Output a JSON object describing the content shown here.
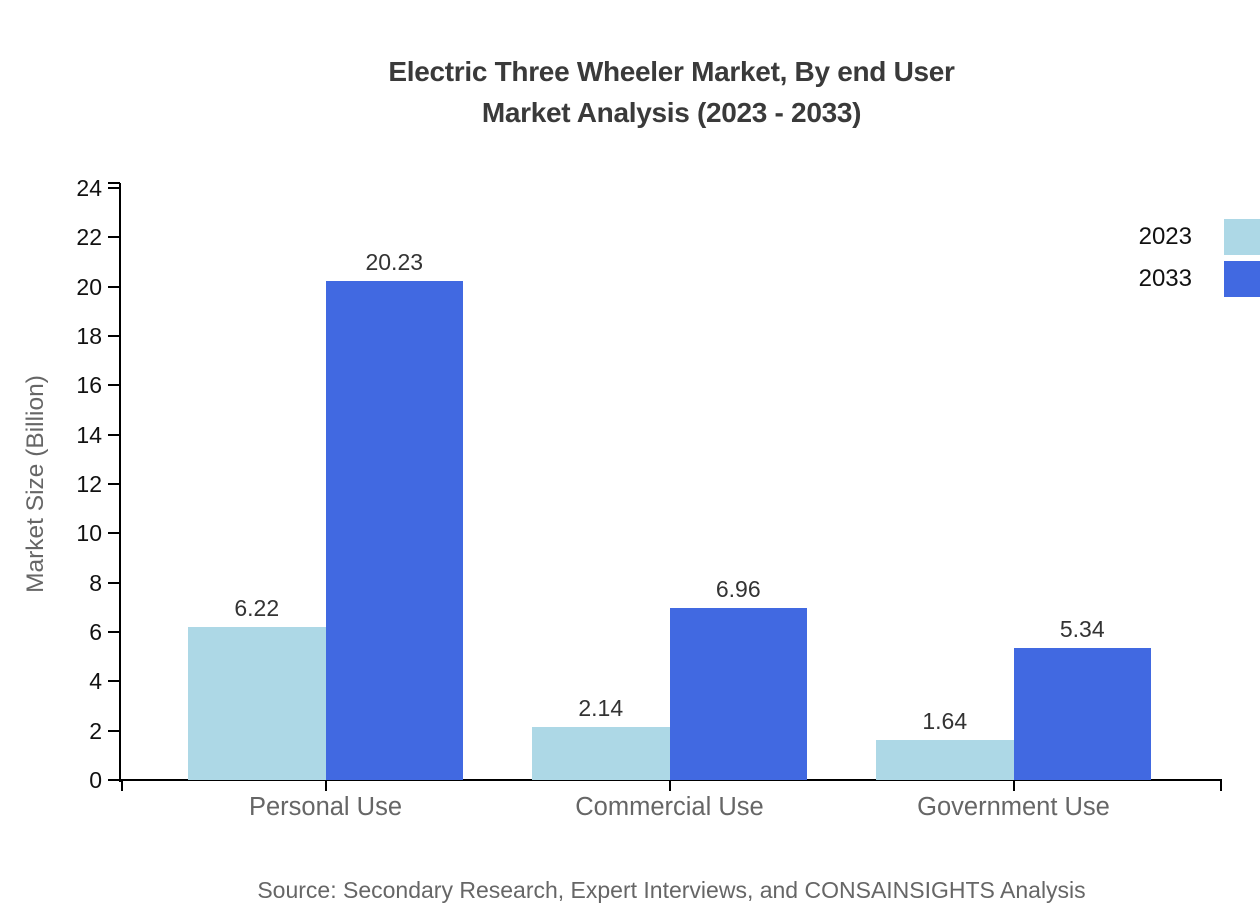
{
  "title": {
    "line1": "Electric Three Wheeler Market, By end User",
    "line2": "Market Analysis (2023 - 2033)"
  },
  "source": "Source: Secondary Research, Expert Interviews, and CONSAINSIGHTS Analysis",
  "legend": [
    {
      "label": "2023",
      "color": "#ADD8E6"
    },
    {
      "label": "2033",
      "color": "#4169E1"
    }
  ],
  "chart_data": {
    "type": "bar",
    "title": "Electric Three Wheeler Market, By end User Market Analysis (2023 - 2033)",
    "categories": [
      "Personal Use",
      "Commercial Use",
      "Government Use"
    ],
    "series": [
      {
        "name": "2023",
        "color": "#ADD8E6",
        "values": [
          6.22,
          2.14,
          1.64
        ]
      },
      {
        "name": "2033",
        "color": "#4169E1",
        "values": [
          20.23,
          6.96,
          5.34
        ]
      }
    ],
    "xlabel": "",
    "ylabel": "Market Size (Billion)",
    "ylim": [
      0,
      24
    ],
    "ytick_step": 2,
    "grid": false,
    "legend_position": "top-right",
    "value_labels": true,
    "axis_color": "#000000",
    "colors": {
      "title": "#3a3a3a",
      "tick_labels": "#111111",
      "category_labels": "#666666",
      "value_labels": "#333333",
      "source": "#666666"
    }
  }
}
